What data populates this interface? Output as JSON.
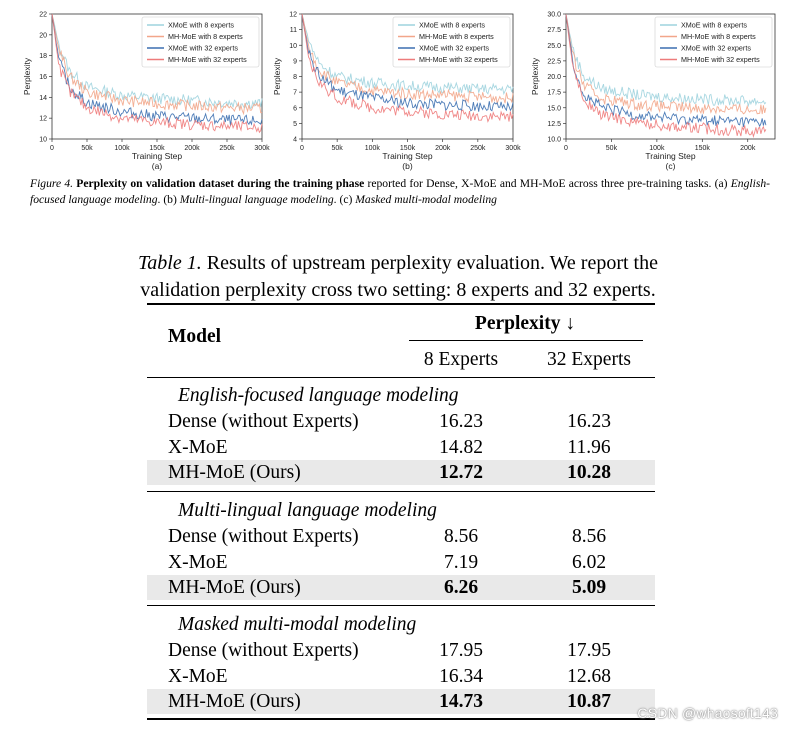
{
  "chart_data": [
    {
      "type": "line",
      "panel": "(a)",
      "xlabel": "Training Step",
      "ylabel": "Perplexity",
      "xlim": [
        0,
        300000
      ],
      "ylim": [
        10,
        22
      ],
      "x_ticks": [
        0,
        50000,
        100000,
        150000,
        200000,
        250000,
        300000
      ],
      "x_tick_labels": [
        "0",
        "50k",
        "100k",
        "150k",
        "200k",
        "250k",
        "300k"
      ],
      "y_ticks": [
        10,
        12,
        14,
        16,
        18,
        20,
        22
      ],
      "y_tick_labels": [
        "10",
        "12",
        "14",
        "16",
        "18",
        "20",
        "22"
      ],
      "legend_position": "top-right",
      "series": [
        {
          "name": "XMoE with 8 experts",
          "color": "#9ed3de",
          "x": [
            0,
            10000,
            25000,
            50000,
            100000,
            150000,
            200000,
            250000,
            300000
          ],
          "values": [
            22,
            19,
            16.5,
            15.0,
            14.2,
            13.9,
            13.7,
            13.5,
            13.4
          ]
        },
        {
          "name": "MH-MoE with 8 experts",
          "color": "#f2a68a",
          "x": [
            0,
            10000,
            25000,
            50000,
            100000,
            150000,
            200000,
            250000,
            300000
          ],
          "values": [
            22,
            18.5,
            16.0,
            14.5,
            13.7,
            13.4,
            13.2,
            13.0,
            12.9
          ]
        },
        {
          "name": "XMoE with 32 experts",
          "color": "#3b6fb0",
          "x": [
            0,
            10000,
            25000,
            50000,
            100000,
            150000,
            200000,
            250000,
            300000
          ],
          "values": [
            22,
            17.5,
            15.0,
            13.5,
            12.6,
            12.2,
            12.0,
            11.8,
            11.7
          ]
        },
        {
          "name": "MH-MoE with 32 experts",
          "color": "#ee7b7b",
          "x": [
            0,
            10000,
            25000,
            50000,
            100000,
            150000,
            200000,
            250000,
            300000
          ],
          "values": [
            22,
            17.0,
            14.5,
            13.0,
            12.0,
            11.6,
            11.4,
            11.2,
            11.1
          ]
        }
      ]
    },
    {
      "type": "line",
      "panel": "(b)",
      "xlabel": "Training Step",
      "ylabel": "Perplexity",
      "xlim": [
        0,
        300000
      ],
      "ylim": [
        4,
        12
      ],
      "x_ticks": [
        0,
        50000,
        100000,
        150000,
        200000,
        250000,
        300000
      ],
      "x_tick_labels": [
        "0",
        "50k",
        "100k",
        "150k",
        "200k",
        "250k",
        "300k"
      ],
      "y_ticks": [
        4,
        5,
        6,
        7,
        8,
        9,
        10,
        11,
        12
      ],
      "y_tick_labels": [
        "4",
        "5",
        "6",
        "7",
        "8",
        "9",
        "10",
        "11",
        "12"
      ],
      "legend_position": "top-right",
      "series": [
        {
          "name": "XMoE with 8 experts",
          "color": "#9ed3de",
          "x": [
            0,
            10000,
            25000,
            50000,
            100000,
            150000,
            200000,
            250000,
            300000
          ],
          "values": [
            12,
            10.2,
            8.8,
            8.0,
            7.6,
            7.4,
            7.3,
            7.2,
            7.2
          ]
        },
        {
          "name": "MH-MoE with 8 experts",
          "color": "#f2a68a",
          "x": [
            0,
            10000,
            25000,
            50000,
            100000,
            150000,
            200000,
            250000,
            300000
          ],
          "values": [
            12,
            9.8,
            8.4,
            7.6,
            7.1,
            6.9,
            6.8,
            6.7,
            6.6
          ]
        },
        {
          "name": "XMoE with 32 experts",
          "color": "#3b6fb0",
          "x": [
            0,
            10000,
            25000,
            50000,
            100000,
            150000,
            200000,
            250000,
            300000
          ],
          "values": [
            12,
            9.4,
            8.0,
            7.1,
            6.6,
            6.3,
            6.2,
            6.1,
            6.0
          ]
        },
        {
          "name": "MH-MoE with 32 experts",
          "color": "#ee7b7b",
          "x": [
            0,
            10000,
            25000,
            50000,
            100000,
            150000,
            200000,
            250000,
            300000
          ],
          "values": [
            12,
            9.0,
            7.6,
            6.6,
            6.0,
            5.8,
            5.6,
            5.5,
            5.4
          ]
        }
      ]
    },
    {
      "type": "line",
      "panel": "(c)",
      "xlabel": "Training Step",
      "ylabel": "Perplexity",
      "xlim": [
        0,
        230000
      ],
      "ylim": [
        10,
        30
      ],
      "x_ticks": [
        0,
        50000,
        100000,
        150000,
        200000
      ],
      "x_tick_labels": [
        "0",
        "50k",
        "100k",
        "150k",
        "200k"
      ],
      "y_ticks": [
        10,
        12.5,
        15,
        17.5,
        20,
        22.5,
        25,
        27.5,
        30
      ],
      "y_tick_labels": [
        "10.0",
        "12.5",
        "15.0",
        "17.5",
        "20.0",
        "22.5",
        "25.0",
        "27.5",
        "30.0"
      ],
      "legend_position": "top-right",
      "series": [
        {
          "name": "XMoE with 8 experts",
          "color": "#9ed3de",
          "x": [
            0,
            8000,
            20000,
            40000,
            80000,
            120000,
            160000,
            200000,
            220000
          ],
          "values": [
            30,
            24.0,
            20.0,
            18.0,
            17.0,
            16.6,
            16.3,
            16.1,
            16.0
          ]
        },
        {
          "name": "MH-MoE with 8 experts",
          "color": "#f2a68a",
          "x": [
            0,
            8000,
            20000,
            40000,
            80000,
            120000,
            160000,
            200000,
            220000
          ],
          "values": [
            30,
            23.0,
            18.5,
            16.5,
            15.5,
            15.1,
            14.9,
            14.7,
            14.6
          ]
        },
        {
          "name": "XMoE with 32 experts",
          "color": "#3b6fb0",
          "x": [
            0,
            8000,
            20000,
            40000,
            80000,
            120000,
            160000,
            200000,
            220000
          ],
          "values": [
            30,
            22.0,
            17.0,
            15.0,
            13.8,
            13.3,
            13.0,
            12.8,
            12.7
          ]
        },
        {
          "name": "MH-MoE with 32 experts",
          "color": "#ee7b7b",
          "x": [
            0,
            8000,
            20000,
            40000,
            80000,
            120000,
            160000,
            200000,
            220000
          ],
          "values": [
            30,
            21.0,
            16.0,
            13.8,
            12.6,
            12.0,
            11.6,
            11.3,
            11.2
          ]
        }
      ]
    }
  ],
  "figure_caption": {
    "label": "Figure 4.",
    "bold": "Perplexity on validation dataset during the training phase",
    "text": " reported for Dense, X-MoE and MH-MoE across three pre-training tasks. (a) ",
    "a": "English-focused language modeling",
    "sep1": ". (b) ",
    "b": "Multi-lingual language modeling",
    "sep2": ". (c) ",
    "c": "Masked multi-modal modeling"
  },
  "table": {
    "caption_label": "Table 1.",
    "caption_text": " Results of upstream perplexity evaluation. We report the validation perplexity cross two setting: 8 experts and 32 experts.",
    "header_model": "Model",
    "header_perplexity": "Perplexity ↓",
    "header_8": "8 Experts",
    "header_32": "32 Experts",
    "sections": [
      {
        "title": "English-focused language modeling",
        "rows": [
          {
            "model": "Dense (without Experts)",
            "e8": "16.23",
            "e32": "16.23"
          },
          {
            "model": "X-MoE",
            "e8": "14.82",
            "e32": "11.96"
          },
          {
            "model": "MH-MoE (Ours)",
            "e8": "12.72",
            "e32": "10.28"
          }
        ]
      },
      {
        "title": "Multi-lingual language modeling",
        "rows": [
          {
            "model": "Dense (without Experts)",
            "e8": "8.56",
            "e32": "8.56"
          },
          {
            "model": "X-MoE",
            "e8": "7.19",
            "e32": "6.02"
          },
          {
            "model": "MH-MoE (Ours)",
            "e8": "6.26",
            "e32": "5.09"
          }
        ]
      },
      {
        "title": "Masked multi-modal modeling",
        "rows": [
          {
            "model": "Dense (without Experts)",
            "e8": "17.95",
            "e32": "17.95"
          },
          {
            "model": "X-MoE",
            "e8": "16.34",
            "e32": "12.68"
          },
          {
            "model": "MH-MoE (Ours)",
            "e8": "14.73",
            "e32": "10.87"
          }
        ]
      }
    ]
  },
  "watermark": "CSDN @whaosoft143"
}
